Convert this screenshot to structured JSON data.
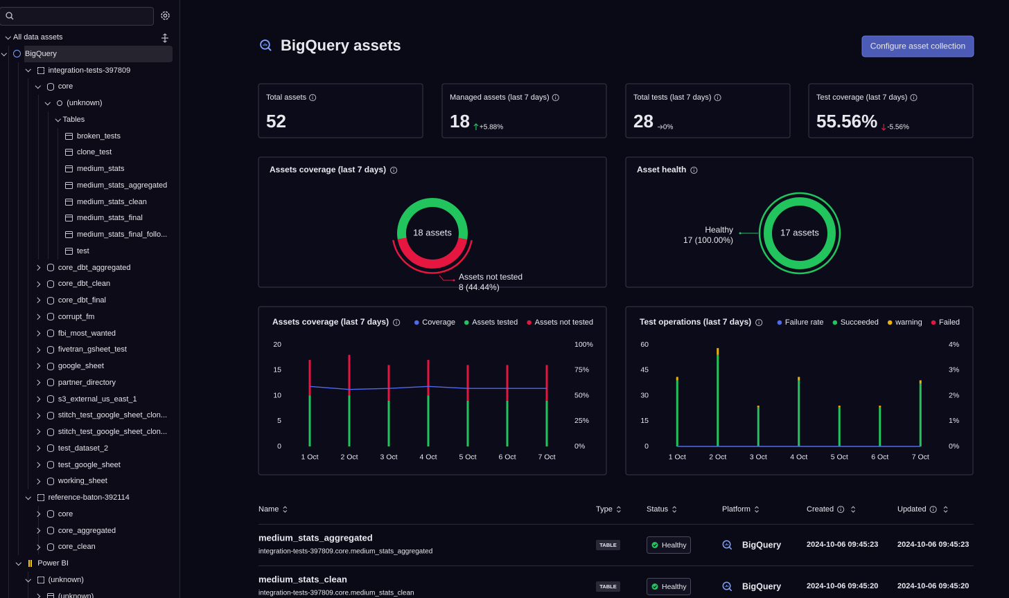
{
  "sidebar": {
    "tree": [
      "All data assets",
      "BigQuery",
      "integration-tests-397809",
      "core",
      "(unknown)",
      "Tables",
      "broken_tests",
      "clone_test",
      "medium_stats",
      "medium_stats_aggregated",
      "medium_stats_clean",
      "medium_stats_final",
      "medium_stats_final_follo...",
      "test",
      "core_dbt_aggregated",
      "core_dbt_clean",
      "core_dbt_final",
      "corrupt_fm",
      "fbi_most_wanted",
      "fivetran_gsheet_test",
      "google_sheet",
      "partner_directory",
      "s3_external_us_east_1",
      "stitch_test_google_sheet_clon...",
      "stitch_test_google_sheet_clon...",
      "test_dataset_2",
      "test_google_sheet",
      "working_sheet",
      "reference-baton-392114",
      "core",
      "core_aggregated",
      "core_clean",
      "Power BI",
      "(unknown)",
      "(unknown)"
    ]
  },
  "header": {
    "title": "BigQuery assets",
    "button": "Configure asset collection"
  },
  "kpis": [
    {
      "label": "Total assets",
      "value": "52"
    },
    {
      "label": "Managed assets (last 7 days)",
      "value": "18",
      "change": "+5.88%"
    },
    {
      "label": "Total tests (last 7 days)",
      "value": "28",
      "change": "0%"
    },
    {
      "label": "Test coverage (last 7 days)",
      "value": "55.56%",
      "change": "-5.56%"
    }
  ],
  "chart_data": [
    {
      "type": "pie",
      "title": "Assets coverage (last 7 days)",
      "center_label": "18 assets",
      "categories": [
        null,
        "Assets not tested"
      ],
      "values": [
        10,
        8
      ],
      "value_labels": [
        null,
        "8 (44.44%)"
      ],
      "colors": [
        "#21c45d",
        "#e5163f"
      ]
    },
    {
      "type": "pie",
      "title": "Asset health",
      "center_label": "17 assets",
      "categories": [
        "Healthy"
      ],
      "values": [
        17
      ],
      "value_labels": [
        "17 (100.00%)"
      ],
      "colors": [
        "#21c45d"
      ]
    },
    {
      "type": "bar",
      "stacked": true,
      "title": "Assets coverage (last 7 days)",
      "categories": [
        "1 Oct",
        "2 Oct",
        "3 Oct",
        "4 Oct",
        "5 Oct",
        "6 Oct",
        "7 Oct"
      ],
      "series": [
        {
          "name": "Coverage",
          "color": "#4f6bed",
          "type": "line",
          "axis": "y2",
          "values": [
            59,
            56,
            57,
            59,
            57,
            57,
            57
          ]
        },
        {
          "name": "Assets tested",
          "color": "#21c45d",
          "values": [
            10,
            10,
            9,
            10,
            9,
            9,
            9
          ]
        },
        {
          "name": "Assets not tested",
          "color": "#e5163f",
          "values": [
            7,
            8,
            7,
            7,
            7,
            7,
            7
          ]
        }
      ],
      "ylim": [
        0,
        20
      ],
      "yticks": [
        0,
        5,
        10,
        15,
        20
      ],
      "y2lim": [
        0,
        100
      ],
      "y2ticks": [
        {
          "value": 0,
          "label": "0%"
        },
        {
          "value": 25,
          "label": "25%"
        },
        {
          "value": 50,
          "label": "50%"
        },
        {
          "value": 75,
          "label": "75%"
        },
        {
          "value": 100,
          "label": "100%"
        }
      ],
      "grid": false,
      "legend": "top-right"
    },
    {
      "type": "bar",
      "stacked": true,
      "title": "Test operations (last 7 days)",
      "categories": [
        "1 Oct",
        "2 Oct",
        "3 Oct",
        "4 Oct",
        "5 Oct",
        "6 Oct",
        "7 Oct"
      ],
      "series": [
        {
          "name": "Failure rate",
          "color": "#4f6bed",
          "type": "line",
          "axis": "y2",
          "values": [
            0,
            0,
            0,
            0,
            0,
            0,
            0
          ]
        },
        {
          "name": "Succeeded",
          "color": "#21c45d",
          "values": [
            39,
            54,
            23,
            39,
            23,
            23,
            37
          ]
        },
        {
          "name": "warning",
          "color": "#eab308",
          "values": [
            2,
            4,
            1,
            2,
            1,
            1,
            2
          ]
        },
        {
          "name": "Failed",
          "color": "#e5163f",
          "values": [
            0,
            0,
            0,
            0,
            0,
            0,
            0
          ]
        }
      ],
      "ylim": [
        0,
        60
      ],
      "yticks": [
        0,
        15,
        30,
        45,
        60
      ],
      "y2lim": [
        0,
        4
      ],
      "y2ticks": [
        {
          "value": 0,
          "label": "0%"
        },
        {
          "value": 1,
          "label": "1%"
        },
        {
          "value": 2,
          "label": "2%"
        },
        {
          "value": 3,
          "label": "3%"
        },
        {
          "value": 4,
          "label": "4%"
        }
      ],
      "grid": false,
      "legend": "top-right"
    }
  ],
  "table": {
    "columns": [
      "Name",
      "Type",
      "Status",
      "Platform",
      "Created",
      "Updated"
    ],
    "rows": [
      {
        "name": "medium_stats_aggregated",
        "path": "integration-tests-397809.core.medium_stats_aggregated",
        "type": "TABLE",
        "status": "Healthy",
        "platform": "BigQuery",
        "created": "2024-10-06 09:45:23",
        "updated": "2024-10-06 09:45:23"
      },
      {
        "name": "medium_stats_clean",
        "path": "integration-tests-397809.core.medium_stats_clean",
        "type": "TABLE",
        "status": "Healthy",
        "platform": "BigQuery",
        "created": "2024-10-06 09:45:20",
        "updated": "2024-10-06 09:45:20"
      }
    ]
  }
}
